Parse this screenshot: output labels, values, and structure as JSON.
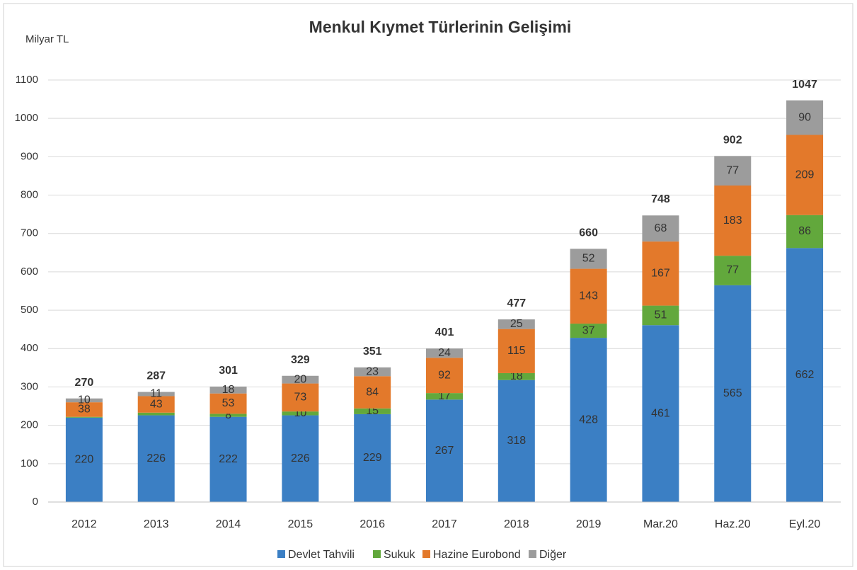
{
  "chart_data": {
    "type": "stacked_bar",
    "title": "Menkul Kıymet Türlerinin Gelişimi",
    "y_label": "Milyar TL",
    "categories": [
      "2012",
      "2013",
      "2014",
      "2015",
      "2016",
      "2017",
      "2018",
      "2019",
      "Mar.20",
      "Haz.20",
      "Eyl.20"
    ],
    "series": [
      {
        "name": "Devlet Tahvili",
        "color": "#3b7fc4",
        "values": [
          220,
          226,
          222,
          226,
          229,
          267,
          318,
          428,
          461,
          565,
          662
        ]
      },
      {
        "name": "Sukuk",
        "color": "#62a83c",
        "values": [
          2,
          7,
          8,
          10,
          15,
          17,
          18,
          37,
          51,
          77,
          86
        ],
        "value_labels": [
          null,
          null,
          "8",
          "10",
          "15",
          "17",
          "18",
          "37",
          "51",
          "77",
          "86"
        ]
      },
      {
        "name": "Hazine Eurobond",
        "color": "#e3792b",
        "values": [
          38,
          43,
          53,
          73,
          84,
          92,
          115,
          143,
          167,
          183,
          209
        ]
      },
      {
        "name": "Diğer",
        "color": "#9c9c9c",
        "values": [
          10,
          11,
          18,
          20,
          23,
          24,
          25,
          52,
          68,
          77,
          90
        ]
      }
    ],
    "totals": [
      270,
      287,
      301,
      329,
      351,
      401,
      477,
      660,
      748,
      902,
      1047
    ],
    "ylim": [
      0,
      1100
    ],
    "yticks": [
      0,
      100,
      200,
      300,
      400,
      500,
      600,
      700,
      800,
      900,
      1000,
      1100
    ],
    "grid": true,
    "legend": "bottom"
  }
}
